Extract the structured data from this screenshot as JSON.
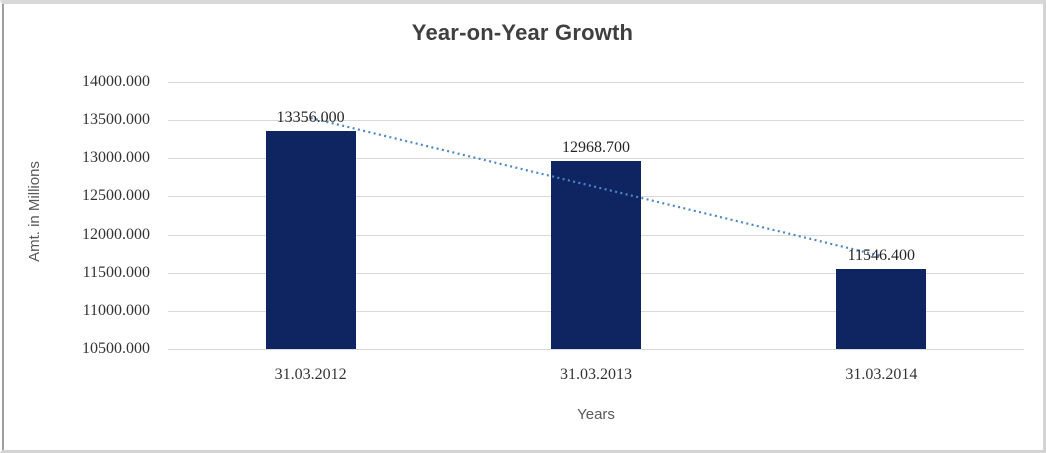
{
  "chart_data": {
    "type": "bar",
    "title": "Year-on-Year Growth",
    "categories": [
      "31.03.2012",
      "31.03.2013",
      "31.03.2014"
    ],
    "values": [
      13356.0,
      12968.7,
      11546.4
    ],
    "value_labels": [
      "13356.000",
      "12968.700",
      "11546.400"
    ],
    "xlabel": "Years",
    "ylabel": "Amt. in Millions",
    "ylim": [
      10500,
      14000
    ],
    "ytick_step": 500,
    "ytick_labels": [
      "14000.000",
      "13500.000",
      "13000.000",
      "12500.000",
      "12000.000",
      "11500.000",
      "11000.000",
      "10500.000"
    ],
    "grid": true,
    "legend": "none",
    "bar_color": "#0e2562",
    "gridline_color": "#d9d9d9",
    "title_color": "#3f3f3f",
    "tick_color": "#333333",
    "axis_title_color": "#595959",
    "trendline": {
      "type": "linear",
      "style": "dotted",
      "color": "#4f86c6"
    }
  }
}
